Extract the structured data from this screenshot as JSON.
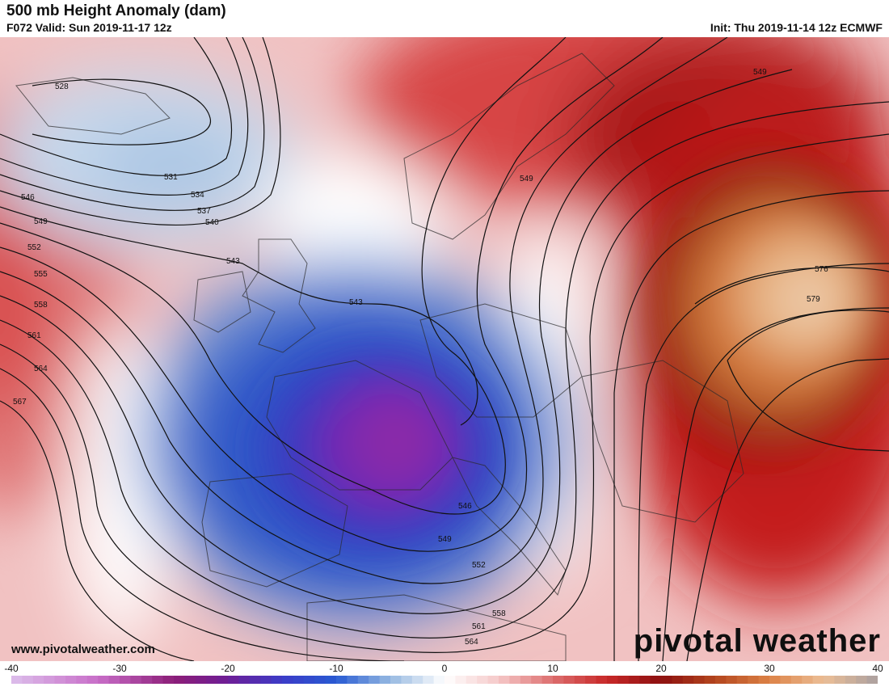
{
  "header": {
    "title": "500 mb Height Anomaly (dam)",
    "valid": "F072 Valid: Sun 2019-11-17 12z",
    "init": "Init: Thu 2019-11-14 12z ECMWF"
  },
  "footer": {
    "website": "www.pivotalweather.com",
    "brand": "pivotal weather"
  },
  "colorbar": {
    "ticks": [
      "-40",
      "-30",
      "-20",
      "-10",
      "0",
      "10",
      "20",
      "30",
      "40"
    ],
    "min": -40,
    "max": 40
  },
  "contour_labels": [
    "528",
    "531",
    "534",
    "537",
    "540",
    "543",
    "546",
    "549",
    "552",
    "555",
    "558",
    "561",
    "564",
    "567",
    "576",
    "579"
  ],
  "colors": {
    "negative_deep": "#7b22b8",
    "negative_mid": "#2850c8",
    "negative_light": "#bcd3ea",
    "neutral": "#ffffff",
    "positive_light": "#f0b5b5",
    "positive_mid": "#d12a2a",
    "positive_deep": "#8b1010",
    "positive_extreme": "#e4b48a"
  }
}
